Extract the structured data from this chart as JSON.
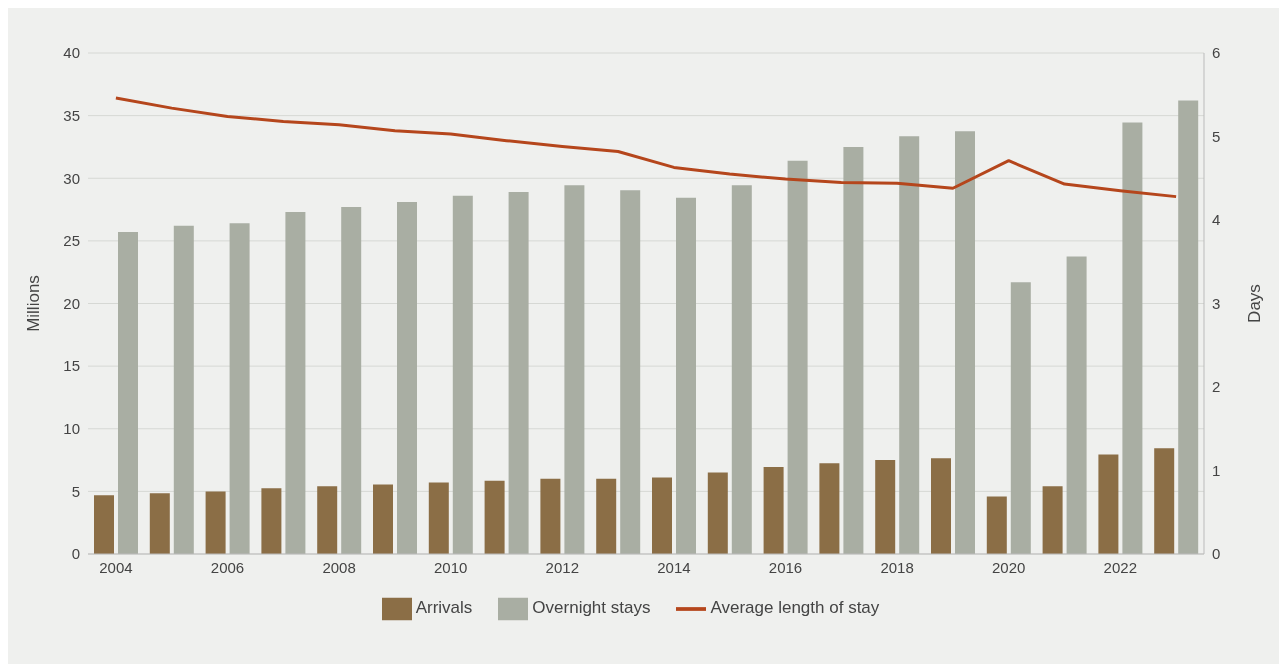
{
  "chart_data": {
    "type": "bar",
    "categories": [
      "2004",
      null,
      "2006",
      null,
      "2008",
      null,
      "2010",
      null,
      "2012",
      null,
      "2014",
      null,
      "2016",
      null,
      "2018",
      null,
      "2020",
      null,
      "2022",
      null
    ],
    "series": [
      {
        "name": "Arrivals",
        "color": "#8b6e46",
        "values": [
          4.7,
          4.85,
          5.0,
          5.25,
          5.4,
          5.55,
          5.7,
          5.85,
          6.0,
          6.0,
          6.1,
          6.5,
          6.95,
          7.25,
          7.5,
          7.65,
          4.6,
          5.4,
          7.95,
          8.45
        ]
      },
      {
        "name": "Overnight stays",
        "color": "#a9aea3",
        "values": [
          25.7,
          26.2,
          26.4,
          27.3,
          27.7,
          28.1,
          28.6,
          28.9,
          29.45,
          29.05,
          28.45,
          29.45,
          31.4,
          32.5,
          33.35,
          33.75,
          21.7,
          23.75,
          34.45,
          36.2
        ]
      },
      {
        "name": "Average length of stay",
        "type": "line",
        "axis": "y2",
        "color": "#b5461c",
        "values": [
          5.46,
          5.34,
          5.24,
          5.18,
          5.14,
          5.07,
          5.03,
          4.95,
          4.88,
          4.82,
          4.63,
          4.55,
          4.49,
          4.45,
          4.44,
          4.38,
          4.71,
          4.43,
          4.35,
          4.28
        ]
      }
    ],
    "ylabel": "Millions",
    "y2label": "Days",
    "ylim": [
      0,
      40
    ],
    "yticks": [
      0,
      5,
      10,
      15,
      20,
      25,
      30,
      35,
      40
    ],
    "y2lim": [
      0,
      6
    ],
    "y2ticks": [
      0,
      1,
      2,
      3,
      4,
      5,
      6
    ],
    "grid": "y",
    "legend": "bottom",
    "marker": "none"
  }
}
